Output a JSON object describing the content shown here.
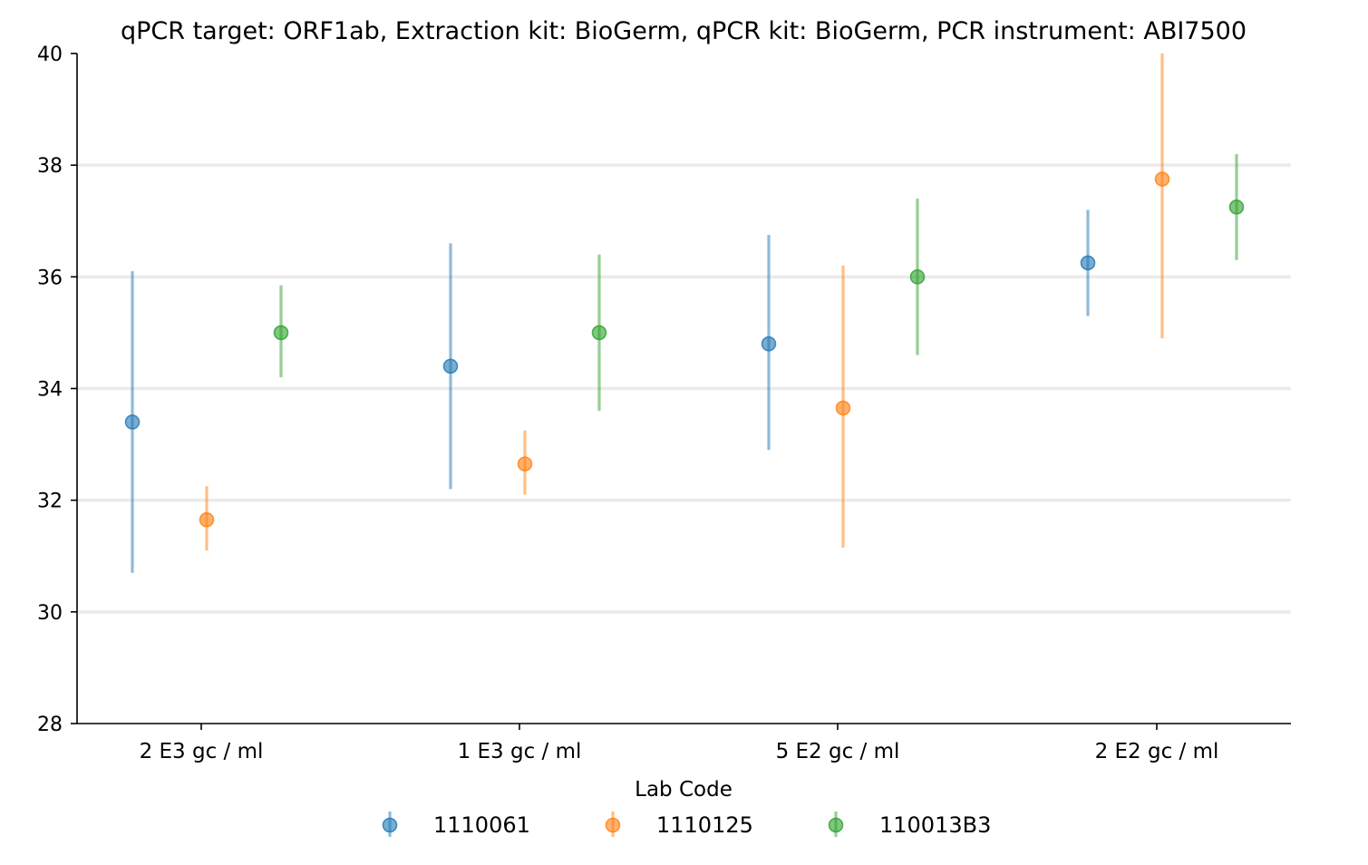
{
  "chart_data": {
    "type": "scatter",
    "title": "qPCR target: ORF1ab, Extraction kit: BioGerm, qPCR kit: BioGerm, PCR instrument: ABI7500",
    "xlabel": "",
    "ylabel": "",
    "categories": [
      "2 E3 gc / ml",
      "1 E3 gc / ml",
      "5 E2 gc / ml",
      "2 E2 gc / ml"
    ],
    "ylim": [
      28,
      40
    ],
    "yticks": [
      28,
      30,
      32,
      34,
      36,
      38,
      40
    ],
    "grid": "horizontal",
    "error_bars": true,
    "legend": {
      "title": "Lab Code",
      "position": "bottom-center"
    },
    "series": [
      {
        "name": "1110061",
        "color": "#1f77b4",
        "values": [
          33.4,
          34.4,
          34.8,
          36.25
        ],
        "err_low": [
          30.7,
          32.2,
          32.9,
          35.3
        ],
        "err_high": [
          36.1,
          36.6,
          36.75,
          37.2
        ]
      },
      {
        "name": "1110125",
        "color": "#ff7f0e",
        "values": [
          31.65,
          32.65,
          33.65,
          37.75
        ],
        "err_low": [
          31.1,
          32.1,
          31.15,
          34.9
        ],
        "err_high": [
          32.25,
          33.25,
          36.2,
          40.0
        ]
      },
      {
        "name": "110013B3",
        "color": "#2ca02c",
        "values": [
          35.0,
          35.0,
          36.0,
          37.25
        ],
        "err_low": [
          34.2,
          33.6,
          34.6,
          36.3
        ],
        "err_high": [
          35.85,
          36.4,
          37.4,
          38.2
        ]
      }
    ]
  }
}
